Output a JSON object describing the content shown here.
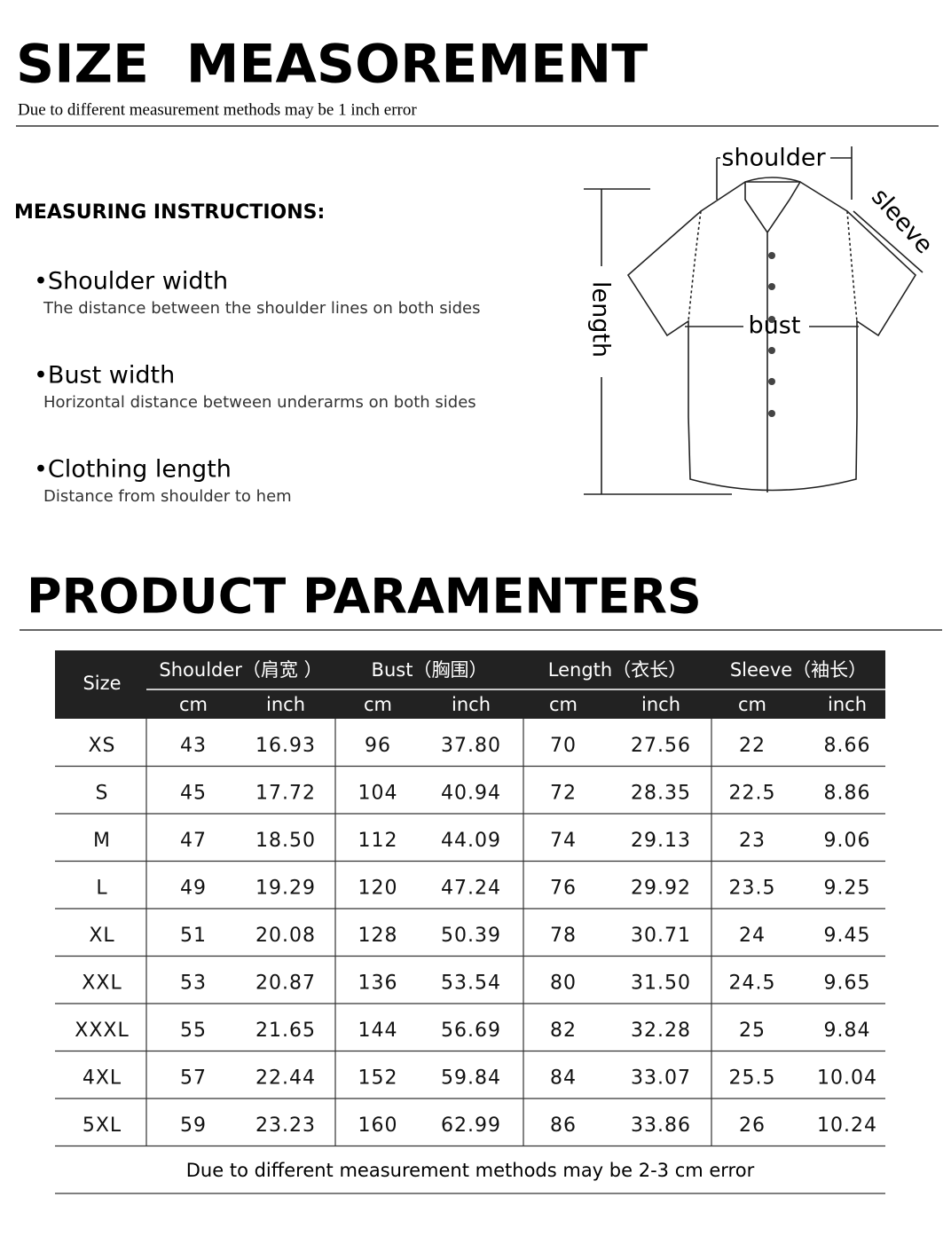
{
  "header": {
    "title": "SIZE  MEASOREMENT",
    "subtitle": "Due to different measurement methods may be 1 inch error"
  },
  "instructions": {
    "heading": "MEASURING INSTRUCTIONS:",
    "items": [
      {
        "label": "•Shoulder width",
        "desc": "The distance between the shoulder lines on both sides"
      },
      {
        "label": "•Bust width",
        "desc": "Horizontal distance between underarms on both sides"
      },
      {
        "label": "•Clothing length",
        "desc": "Distance from shoulder to hem"
      }
    ]
  },
  "diagram": {
    "shoulder": "shoulder",
    "sleeve": "sleeve",
    "length": "length",
    "bust": "bust"
  },
  "section_title": "PRODUCT PARAMENTERS",
  "table": {
    "size_header": "Size",
    "groups": [
      "Shoulder（肩宽 ）",
      "Bust（胸围）",
      "Length（衣长）",
      "Sleeve（袖长）"
    ],
    "units": [
      "cm",
      "inch",
      "cm",
      "inch",
      "cm",
      "inch",
      "cm",
      "inch"
    ],
    "rows": [
      [
        "XS",
        "43",
        "16.93",
        "96",
        "37.80",
        "70",
        "27.56",
        "22",
        "8.66"
      ],
      [
        "S",
        "45",
        "17.72",
        "104",
        "40.94",
        "72",
        "28.35",
        "22.5",
        "8.86"
      ],
      [
        "M",
        "47",
        "18.50",
        "112",
        "44.09",
        "74",
        "29.13",
        "23",
        "9.06"
      ],
      [
        "L",
        "49",
        "19.29",
        "120",
        "47.24",
        "76",
        "29.92",
        "23.5",
        "9.25"
      ],
      [
        "XL",
        "51",
        "20.08",
        "128",
        "50.39",
        "78",
        "30.71",
        "24",
        "9.45"
      ],
      [
        "XXL",
        "53",
        "20.87",
        "136",
        "53.54",
        "80",
        "31.50",
        "24.5",
        "9.65"
      ],
      [
        "XXXL",
        "55",
        "21.65",
        "144",
        "56.69",
        "82",
        "32.28",
        "25",
        "9.84"
      ],
      [
        "4XL",
        "57",
        "22.44",
        "152",
        "59.84",
        "84",
        "33.07",
        "25.5",
        "10.04"
      ],
      [
        "5XL",
        "59",
        "23.23",
        "160",
        "62.99",
        "86",
        "33.86",
        "26",
        "10.24"
      ]
    ],
    "note": "Due to different measurement methods may be 2-3 cm error"
  }
}
